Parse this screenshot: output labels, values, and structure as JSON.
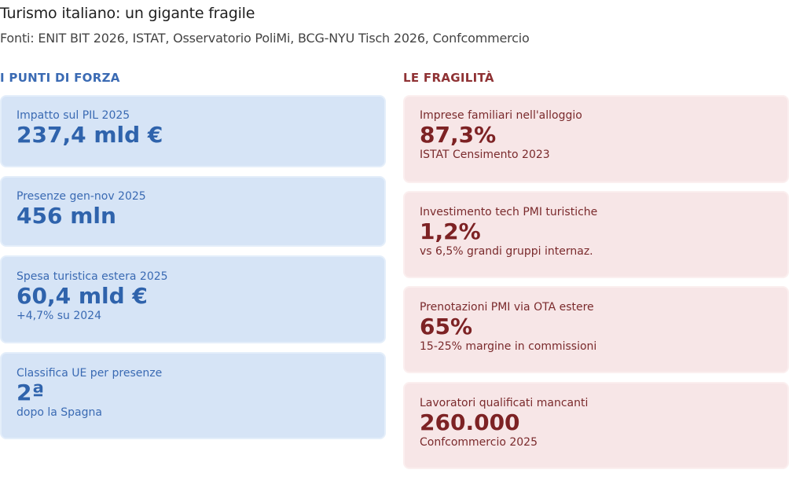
{
  "title": "Turismo italiano: un gigante fragile",
  "subtitle": "Fonti: ENIT BIT 2026, ISTAT, Osservatorio PoliMi, BCG-NYU Tisch 2026, Confcommercio",
  "strengths": {
    "heading": "I PUNTI DI FORZA",
    "cards": [
      {
        "label": "Impatto sul PIL 2025",
        "value": "237,4 mld €",
        "note": ""
      },
      {
        "label": "Presenze gen-nov 2025",
        "value": "456 mln",
        "note": ""
      },
      {
        "label": "Spesa turistica estera 2025",
        "value": "60,4 mld €",
        "note": "+4,7% su 2024"
      },
      {
        "label": "Classifica UE per presenze",
        "value": "2ª",
        "note": "dopo la Spagna"
      }
    ]
  },
  "weaknesses": {
    "heading": "LE FRAGILITÀ",
    "cards": [
      {
        "label": "Imprese familiari nell'alloggio",
        "value": "87,3%",
        "note": "ISTAT Censimento 2023"
      },
      {
        "label": "Investimento tech PMI turistiche",
        "value": "1,2%",
        "note": "vs 6,5% grandi gruppi internaz."
      },
      {
        "label": "Prenotazioni PMI via OTA estere",
        "value": "65%",
        "note": "15-25% margine in commissioni"
      },
      {
        "label": "Lavoratori qualificati mancanti",
        "value": "260.000",
        "note": "Confcommercio 2025"
      }
    ]
  },
  "colors": {
    "strength_bg": "#d6e4f6",
    "strength_text": "#2f63ac",
    "weakness_bg": "#f7e6e7",
    "weakness_text": "#7d2224"
  }
}
